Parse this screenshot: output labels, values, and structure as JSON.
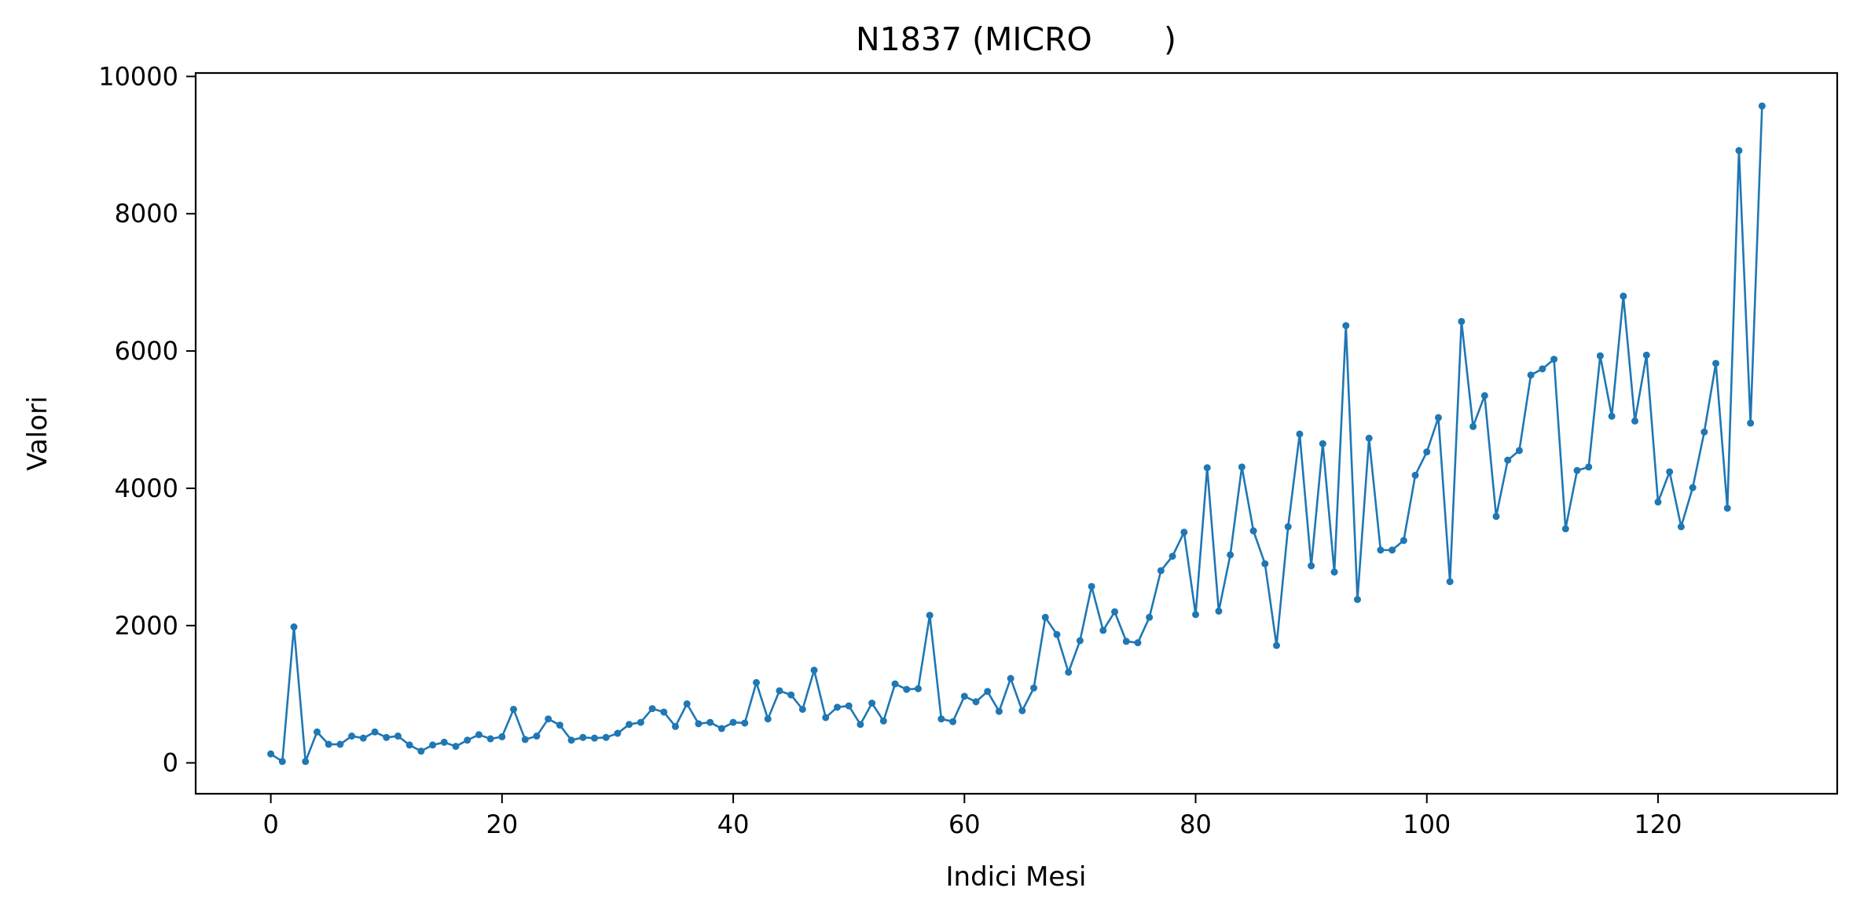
{
  "chart_data": {
    "type": "line",
    "title": "N1837 (MICRO       )",
    "xlabel": "Indici Mesi",
    "ylabel": "Valori",
    "xlim": [
      -6.5,
      135.5
    ],
    "ylim": [
      -450,
      10050
    ],
    "xticks": [
      0,
      20,
      40,
      60,
      80,
      100,
      120
    ],
    "yticks": [
      0,
      2000,
      4000,
      6000,
      8000,
      10000
    ],
    "grid": false,
    "legend": "none",
    "colors": {
      "line": "#1f77b4",
      "axes": "#000000",
      "background": "#ffffff"
    },
    "series": [
      {
        "x": [
          0,
          1,
          2,
          3,
          4,
          5,
          6,
          7,
          8,
          9,
          10,
          11,
          12,
          13,
          14,
          15,
          16,
          17,
          18,
          19,
          20,
          21,
          22,
          23,
          24,
          25,
          26,
          27,
          28,
          29,
          30,
          31,
          32,
          33,
          34,
          35,
          36,
          37,
          38,
          39,
          40,
          41,
          42,
          43,
          44,
          45,
          46,
          47,
          48,
          49,
          50,
          51,
          52,
          53,
          54,
          55,
          56,
          57,
          58,
          59,
          60,
          61,
          62,
          63,
          64,
          65,
          66,
          67,
          68,
          69,
          70,
          71,
          72,
          73,
          74,
          75,
          76,
          77,
          78,
          79,
          80,
          81,
          82,
          83,
          84,
          85,
          86,
          87,
          88,
          89,
          90,
          91,
          92,
          93,
          94,
          95,
          96,
          97,
          98,
          99,
          100,
          101,
          102,
          103,
          104,
          105,
          106,
          107,
          108,
          109,
          110,
          111,
          112,
          113,
          114,
          115,
          116,
          117,
          118,
          119,
          120,
          121,
          122,
          123,
          124,
          125,
          126,
          127,
          128,
          129
        ],
        "values": [
          130,
          20,
          1980,
          20,
          450,
          270,
          270,
          390,
          360,
          450,
          370,
          390,
          260,
          170,
          260,
          300,
          240,
          330,
          410,
          350,
          380,
          780,
          340,
          390,
          640,
          550,
          330,
          370,
          360,
          370,
          430,
          560,
          590,
          790,
          740,
          530,
          860,
          570,
          590,
          500,
          590,
          580,
          1170,
          640,
          1050,
          990,
          780,
          1350,
          660,
          810,
          830,
          560,
          870,
          610,
          1150,
          1070,
          1080,
          2150,
          640,
          600,
          970,
          890,
          1040,
          750,
          1230,
          760,
          1090,
          2120,
          1870,
          1320,
          1780,
          2570,
          1930,
          2200,
          1770,
          1750,
          2120,
          2800,
          3010,
          3360,
          2160,
          4300,
          2210,
          3030,
          4310,
          3380,
          2900,
          1710,
          3440,
          4790,
          2870,
          4650,
          2780,
          6370,
          2380,
          4730,
          3100,
          3100,
          3240,
          4190,
          4530,
          5030,
          2640,
          6430,
          4900,
          5350,
          3590,
          4410,
          4550,
          5650,
          5740,
          5880,
          3410,
          4260,
          4310,
          5930,
          5050,
          6800,
          4980,
          5940,
          3800,
          4240,
          3440,
          4010,
          4820,
          5820,
          3710,
          8920,
          4950,
          9570
        ]
      }
    ]
  }
}
